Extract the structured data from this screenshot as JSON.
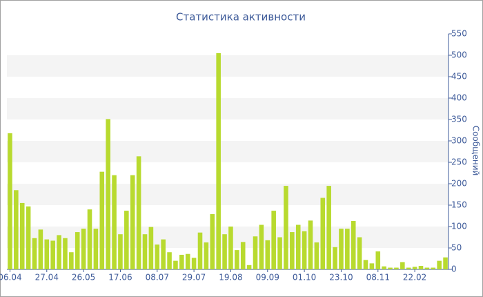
{
  "chart_data": {
    "type": "bar",
    "title": "Статистика активности",
    "y_label": "Сообщений",
    "categories": [
      "06.04",
      null,
      null,
      null,
      null,
      null,
      "27.04",
      null,
      null,
      null,
      null,
      null,
      "26.05",
      null,
      null,
      null,
      null,
      null,
      "17.06",
      null,
      null,
      null,
      null,
      null,
      "08.07",
      null,
      null,
      null,
      null,
      null,
      "29.07",
      null,
      null,
      null,
      null,
      null,
      "19.08",
      null,
      null,
      null,
      null,
      null,
      "09.09",
      null,
      null,
      null,
      null,
      null,
      "01.10",
      null,
      null,
      null,
      null,
      null,
      "23.10",
      null,
      null,
      null,
      null,
      null,
      "08.11",
      null,
      null,
      null,
      null,
      null,
      "22.02",
      null,
      null,
      null,
      null,
      null
    ],
    "values": [
      318,
      185,
      155,
      147,
      73,
      93,
      70,
      67,
      80,
      73,
      40,
      87,
      95,
      140,
      95,
      228,
      351,
      220,
      82,
      137,
      220,
      264,
      82,
      99,
      58,
      70,
      40,
      20,
      34,
      36,
      27,
      86,
      63,
      129,
      505,
      82,
      100,
      45,
      64,
      10,
      77,
      104,
      68,
      137,
      75,
      195,
      87,
      104,
      89,
      114,
      63,
      167,
      195,
      52,
      95,
      95,
      113,
      75,
      22,
      14,
      42,
      7,
      4,
      4,
      17,
      4,
      6,
      8,
      4,
      4,
      20,
      28
    ],
    "color": "#b8da2f",
    "ylim": [
      0,
      550
    ],
    "yticks": [
      0,
      50,
      100,
      150,
      200,
      250,
      300,
      350,
      400,
      450,
      500,
      550
    ],
    "grid": true
  }
}
